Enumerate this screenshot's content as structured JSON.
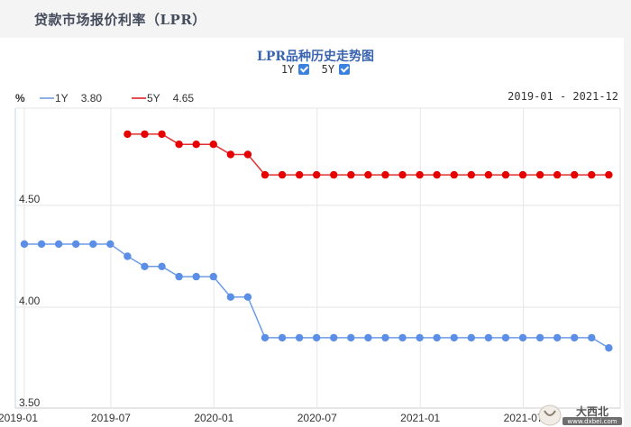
{
  "page": {
    "title": "贷款市场报价利率（LPR）"
  },
  "chart": {
    "title": "LPR品种历史走势图",
    "toggles": [
      {
        "label": "1Y",
        "checked": true
      },
      {
        "label": "5Y",
        "checked": true
      }
    ],
    "unit": "%",
    "legend": [
      {
        "label": "1Y",
        "latest": "3.80",
        "color": "#5b8ee6"
      },
      {
        "label": "5Y",
        "latest": "4.65",
        "color": "#e60000"
      }
    ],
    "range_label": "2019-01  -  2021-12"
  },
  "chart_data": {
    "type": "line",
    "title": "LPR品种历史走势图",
    "xlabel": "",
    "ylabel": "%",
    "ylim": [
      3.5,
      4.95
    ],
    "yticks": [
      "3.50",
      "4.00",
      "4.50"
    ],
    "xticks": [
      "2019-01",
      "2019-07",
      "2020-01",
      "2020-07",
      "2021-01",
      "2021-07"
    ],
    "grid": true,
    "x": [
      "2019-02",
      "2019-03",
      "2019-04",
      "2019-05",
      "2019-06",
      "2019-07",
      "2019-08",
      "2019-09",
      "2019-10",
      "2019-11",
      "2019-12",
      "2020-01",
      "2020-02",
      "2020-03",
      "2020-04",
      "2020-05",
      "2020-06",
      "2020-07",
      "2020-08",
      "2020-09",
      "2020-10",
      "2020-11",
      "2020-12",
      "2021-01",
      "2021-02",
      "2021-03",
      "2021-04",
      "2021-05",
      "2021-06",
      "2021-07",
      "2021-08",
      "2021-09",
      "2021-10",
      "2021-11",
      "2021-12"
    ],
    "series": [
      {
        "name": "1Y",
        "color": "#5b8ee6",
        "values": [
          4.31,
          4.31,
          4.31,
          4.31,
          4.31,
          4.31,
          4.25,
          4.2,
          4.2,
          4.15,
          4.15,
          4.15,
          4.05,
          4.05,
          3.85,
          3.85,
          3.85,
          3.85,
          3.85,
          3.85,
          3.85,
          3.85,
          3.85,
          3.85,
          3.85,
          3.85,
          3.85,
          3.85,
          3.85,
          3.85,
          3.85,
          3.85,
          3.85,
          3.85,
          3.8
        ]
      },
      {
        "name": "5Y",
        "color": "#e60000",
        "values": [
          null,
          null,
          null,
          null,
          null,
          null,
          4.85,
          4.85,
          4.85,
          4.8,
          4.8,
          4.8,
          4.75,
          4.75,
          4.65,
          4.65,
          4.65,
          4.65,
          4.65,
          4.65,
          4.65,
          4.65,
          4.65,
          4.65,
          4.65,
          4.65,
          4.65,
          4.65,
          4.65,
          4.65,
          4.65,
          4.65,
          4.65,
          4.65,
          4.65
        ]
      }
    ],
    "legend_position": "top-left"
  },
  "watermark": {
    "text": "大西北",
    "url_text": "www.dxbei.com"
  }
}
